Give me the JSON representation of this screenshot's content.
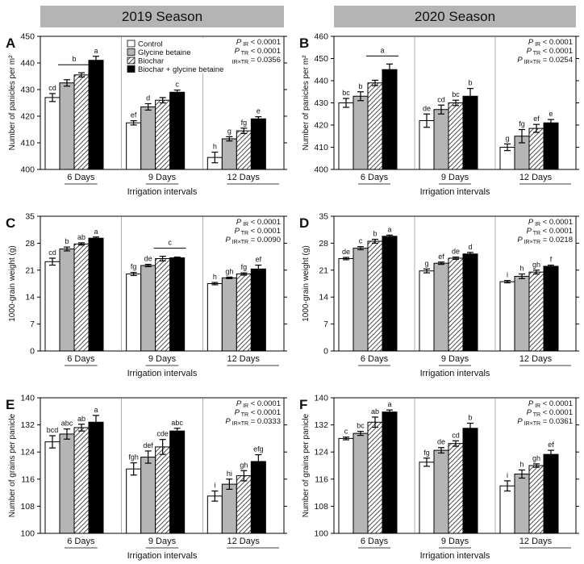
{
  "seasons": [
    "2019 Season",
    "2020 Season"
  ],
  "legend": [
    "Control",
    "Glycine betaine",
    "Biochar",
    "Biochar + glycine betaine"
  ],
  "groups": [
    "6 Days",
    "9 Days",
    "12 Days"
  ],
  "xlabel": "Irrigation intervals",
  "colors": {
    "control": "#ffffff",
    "glycine": "#b5b5b5",
    "biochar": "hatch",
    "combined": "#000000",
    "header": "#b4b4b4"
  },
  "chart_data": [
    {
      "id": "A",
      "type": "bar",
      "season": "2019 Season",
      "ylabel": "Number of panicles per m²",
      "ylim": [
        400,
        450
      ],
      "yticks": [
        400,
        410,
        420,
        430,
        440,
        450
      ],
      "categories": [
        "6 Days",
        "9 Days",
        "12 Days"
      ],
      "xlabel": "Irrigation intervals",
      "series": [
        {
          "name": "Control",
          "values": [
            427,
            417.5,
            404.5
          ],
          "errors": [
            1.5,
            0.8,
            2
          ],
          "letters": [
            "cd",
            "ef",
            "h"
          ]
        },
        {
          "name": "Glycine betaine",
          "values": [
            432.5,
            423.5,
            411.5
          ],
          "errors": [
            1.2,
            1.2,
            0.8
          ],
          "letters": [
            "",
            "d",
            "g"
          ]
        },
        {
          "name": "Biochar",
          "values": [
            435.5,
            426,
            414.5
          ],
          "errors": [
            0.8,
            1,
            1
          ],
          "letters": [
            "",
            "",
            "fg"
          ]
        },
        {
          "name": "Biochar + glycine betaine",
          "values": [
            441,
            429,
            419
          ],
          "errors": [
            1.5,
            0.8,
            0.8
          ],
          "letters": [
            "a",
            "c",
            "e"
          ]
        }
      ],
      "bracket": {
        "group": 0,
        "from": 1,
        "to": 2,
        "label": "b"
      },
      "stats": [
        "P_IR < 0.0001",
        "P_TR < 0.0001",
        "P_IR×TR = 0.0356"
      ],
      "show_legend": true
    },
    {
      "id": "B",
      "type": "bar",
      "season": "2020 Season",
      "ylabel": "Number of panicles per m²",
      "ylim": [
        400,
        460
      ],
      "yticks": [
        400,
        410,
        420,
        430,
        440,
        450,
        460
      ],
      "categories": [
        "6 Days",
        "9 Days",
        "12 Days"
      ],
      "xlabel": "Irrigation intervals",
      "series": [
        {
          "name": "Control",
          "values": [
            430,
            422,
            410
          ],
          "errors": [
            2,
            3,
            1.5
          ],
          "letters": [
            "bc",
            "de",
            "g"
          ]
        },
        {
          "name": "Glycine betaine",
          "values": [
            433,
            427,
            415
          ],
          "errors": [
            2,
            2,
            3
          ],
          "letters": [
            "b",
            "cd",
            "fg"
          ]
        },
        {
          "name": "Biochar",
          "values": [
            439,
            430,
            418.5
          ],
          "errors": [
            1.2,
            1.2,
            1.8
          ],
          "letters": [
            "",
            "bc",
            "ef"
          ]
        },
        {
          "name": "Biochar + glycine betaine",
          "values": [
            445,
            433,
            421
          ],
          "errors": [
            2.5,
            3.5,
            1.5
          ],
          "letters": [
            "",
            "b",
            "e"
          ]
        }
      ],
      "bracket": {
        "group": 0,
        "from": 2,
        "to": 3,
        "label": "a"
      },
      "stats": [
        "P_IR < 0.0001",
        "P_TR < 0.0001",
        "P_IR×TR = 0.0254"
      ],
      "show_legend": false
    },
    {
      "id": "C",
      "type": "bar",
      "season": "2019 Season",
      "ylabel": "1000-grain weight (g)",
      "ylim": [
        0,
        35
      ],
      "yticks": [
        0,
        7,
        14,
        21,
        28,
        35
      ],
      "categories": [
        "6 Days",
        "9 Days",
        "12 Days"
      ],
      "xlabel": "Irrigation intervals",
      "series": [
        {
          "name": "Control",
          "values": [
            23.2,
            20,
            17.5
          ],
          "errors": [
            0.9,
            0.4,
            0.3
          ],
          "letters": [
            "cd",
            "fg",
            "h"
          ]
        },
        {
          "name": "Glycine betaine",
          "values": [
            26.5,
            22.2,
            19
          ],
          "errors": [
            0.5,
            0.3,
            0.2
          ],
          "letters": [
            "b",
            "de",
            "gh"
          ]
        },
        {
          "name": "Biochar",
          "values": [
            27.8,
            24,
            20
          ],
          "errors": [
            0.3,
            0.6,
            0.3
          ],
          "letters": [
            "ab",
            "",
            "fg"
          ]
        },
        {
          "name": "Biochar + glycine betaine",
          "values": [
            29.3,
            24.2,
            21.3
          ],
          "errors": [
            0.3,
            0.2,
            1
          ],
          "letters": [
            "a",
            "",
            "ef"
          ]
        }
      ],
      "bracket": {
        "group": 1,
        "from": 2,
        "to": 3,
        "label": "c"
      },
      "stats": [
        "P_IR < 0.0001",
        "P_TR < 0.0001",
        "P_IR×TR = 0.0090"
      ],
      "show_legend": false
    },
    {
      "id": "D",
      "type": "bar",
      "season": "2020 Season",
      "ylabel": "1000-grain weight (g)",
      "ylim": [
        0,
        35
      ],
      "yticks": [
        0,
        7,
        14,
        21,
        28,
        35
      ],
      "categories": [
        "6 Days",
        "9 Days",
        "12 Days"
      ],
      "xlabel": "Irrigation intervals",
      "series": [
        {
          "name": "Control",
          "values": [
            24,
            20.8,
            18
          ],
          "errors": [
            0.3,
            0.5,
            0.3
          ],
          "letters": [
            "de",
            "g",
            "i"
          ]
        },
        {
          "name": "Glycine betaine",
          "values": [
            26.7,
            22.8,
            19.4
          ],
          "errors": [
            0.4,
            0.3,
            0.6
          ],
          "letters": [
            "c",
            "ef",
            "h"
          ]
        },
        {
          "name": "Biochar",
          "values": [
            28.5,
            24.1,
            20.5
          ],
          "errors": [
            0.5,
            0.3,
            0.5
          ],
          "letters": [
            "b",
            "de",
            "gh"
          ]
        },
        {
          "name": "Biochar + glycine betaine",
          "values": [
            29.8,
            25.2,
            22
          ],
          "errors": [
            0.3,
            0.4,
            0.3
          ],
          "letters": [
            "a",
            "d",
            "f"
          ]
        }
      ],
      "bracket": null,
      "stats": [
        "P_IR < 0.0001",
        "P_TR < 0.0001",
        "P_IR×TR = 0.0218"
      ],
      "show_legend": false
    },
    {
      "id": "E",
      "type": "bar",
      "season": "2019 Season",
      "ylabel": "Number of grains per panicle",
      "ylim": [
        100,
        140
      ],
      "yticks": [
        100,
        108,
        116,
        124,
        132,
        140
      ],
      "categories": [
        "6 Days",
        "9 Days",
        "12 Days"
      ],
      "xlabel": "Irrigation intervals",
      "series": [
        {
          "name": "Control",
          "values": [
            127,
            119,
            111
          ],
          "errors": [
            1.8,
            1.8,
            1.5
          ],
          "letters": [
            "bcd",
            "fgh",
            "i"
          ]
        },
        {
          "name": "Glycine betaine",
          "values": [
            129.3,
            122.5,
            114.5
          ],
          "errors": [
            1.5,
            1.8,
            1.5
          ],
          "letters": [
            "abc",
            "def",
            "hi"
          ]
        },
        {
          "name": "Biochar",
          "values": [
            131.2,
            125.5,
            117
          ],
          "errors": [
            1,
            2.2,
            1.5
          ],
          "letters": [
            "ab",
            "cde",
            "gh"
          ]
        },
        {
          "name": "Biochar + glycine betaine",
          "values": [
            132.8,
            130.2,
            121.2
          ],
          "errors": [
            2,
            0.8,
            2
          ],
          "letters": [
            "a",
            "abc",
            "efg"
          ]
        }
      ],
      "bracket": null,
      "stats": [
        "P_IR < 0.0001",
        "P_TR < 0.0001",
        "P_IR×TR = 0.0333"
      ],
      "show_legend": false
    },
    {
      "id": "F",
      "type": "bar",
      "season": "2020 Season",
      "ylabel": "Number of grains per panicle",
      "ylim": [
        100,
        140
      ],
      "yticks": [
        100,
        108,
        116,
        124,
        132,
        140
      ],
      "categories": [
        "6 Days",
        "9 Days",
        "12 Days"
      ],
      "xlabel": "Irrigation intervals",
      "series": [
        {
          "name": "Control",
          "values": [
            128,
            121,
            114
          ],
          "errors": [
            0.4,
            1.2,
            1.5
          ],
          "letters": [
            "c",
            "fg",
            "i"
          ]
        },
        {
          "name": "Glycine betaine",
          "values": [
            129.5,
            124.5,
            117.5
          ],
          "errors": [
            0.6,
            0.8,
            1.2
          ],
          "letters": [
            "bc",
            "de",
            "h"
          ]
        },
        {
          "name": "Biochar",
          "values": [
            132.8,
            126.5,
            120
          ],
          "errors": [
            1.5,
            0.8,
            0.5
          ],
          "letters": [
            "ab",
            "cd",
            "gh"
          ]
        },
        {
          "name": "Biochar + glycine betaine",
          "values": [
            135.8,
            131,
            123.3
          ],
          "errors": [
            0.6,
            1.5,
            1.2
          ],
          "letters": [
            "a",
            "b",
            "ef"
          ]
        }
      ],
      "bracket": null,
      "stats": [
        "P_IR < 0.0001",
        "P_TR < 0.0001",
        "P_IR×TR = 0.0361"
      ],
      "show_legend": false
    }
  ]
}
